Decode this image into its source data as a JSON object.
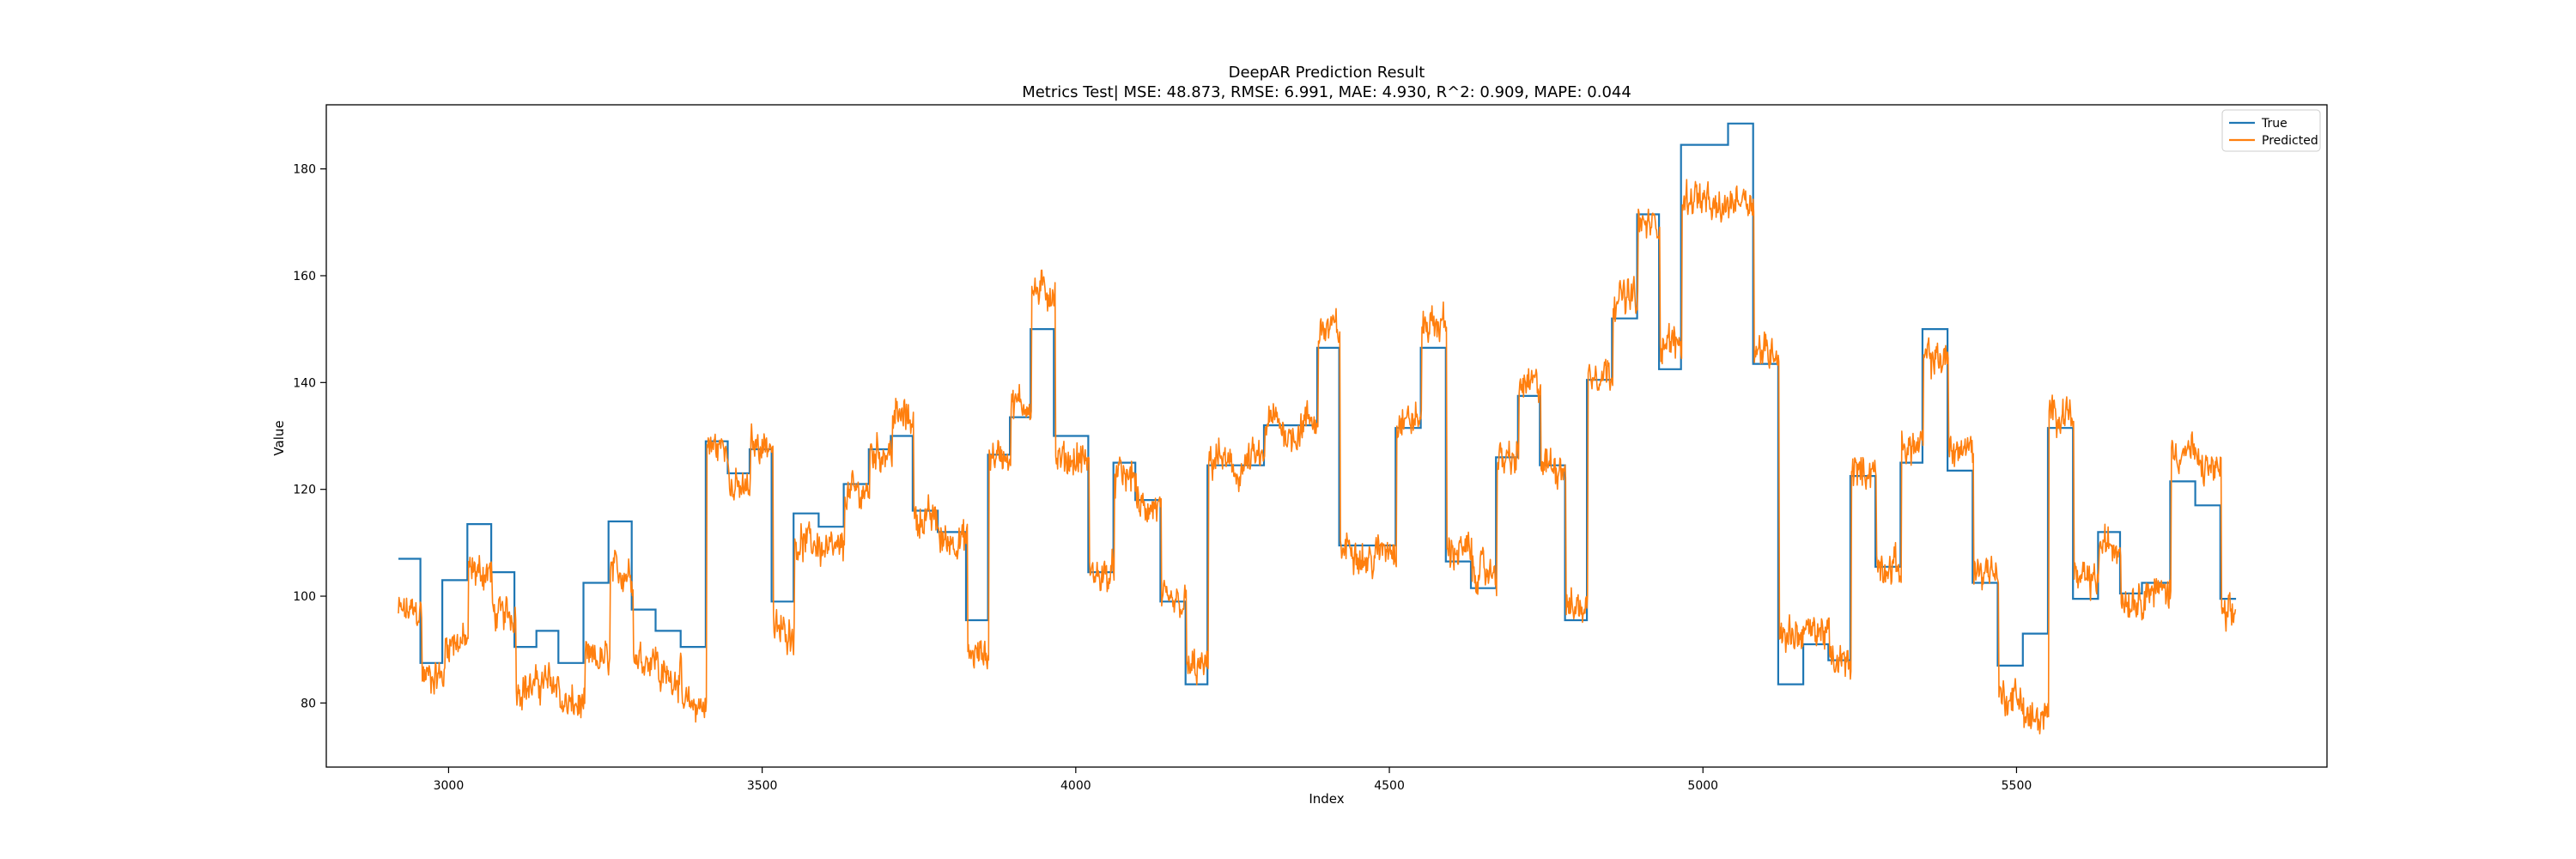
{
  "chart_data": {
    "type": "line",
    "title": "DeepAR Prediction Result",
    "subtitle": "Metrics Test| MSE: 48.873, RMSE: 6.991, MAE: 4.930, R^2: 0.909, MAPE: 0.044",
    "xlabel": "Index",
    "ylabel": "Value",
    "xlim": [
      2805,
      5995
    ],
    "ylim": [
      68,
      192
    ],
    "xticks": [
      3000,
      3500,
      4000,
      4500,
      5000,
      5500
    ],
    "yticks": [
      80,
      100,
      120,
      140,
      160,
      180
    ],
    "grid": false,
    "legend": "top-right",
    "series": [
      {
        "name": "True",
        "color": "#1f77b4",
        "segments": [
          [
            2920,
            107.0
          ],
          [
            2955,
            87.5
          ],
          [
            2990,
            103.0
          ],
          [
            3030,
            113.5
          ],
          [
            3068,
            104.5
          ],
          [
            3105,
            90.5
          ],
          [
            3140,
            93.5
          ],
          [
            3175,
            87.5
          ],
          [
            3215,
            102.5
          ],
          [
            3255,
            114.0
          ],
          [
            3292,
            97.5
          ],
          [
            3330,
            93.5
          ],
          [
            3370,
            90.5
          ],
          [
            3410,
            129.0
          ],
          [
            3445,
            123.0
          ],
          [
            3480,
            127.5
          ],
          [
            3515,
            99.0
          ],
          [
            3550,
            115.5
          ],
          [
            3590,
            113.0
          ],
          [
            3630,
            121.0
          ],
          [
            3670,
            127.5
          ],
          [
            3705,
            130.0
          ],
          [
            3740,
            116.0
          ],
          [
            3780,
            112.0
          ],
          [
            3825,
            95.5
          ],
          [
            3860,
            126.5
          ],
          [
            3895,
            133.5
          ],
          [
            3928,
            150.0
          ],
          [
            3965,
            130.0
          ],
          [
            4020,
            104.5
          ],
          [
            4060,
            125.0
          ],
          [
            4095,
            118.0
          ],
          [
            4135,
            99.0
          ],
          [
            4175,
            83.5
          ],
          [
            4210,
            124.5
          ],
          [
            4300,
            132.0
          ],
          [
            4385,
            146.5
          ],
          [
            4420,
            109.5
          ],
          [
            4510,
            131.5
          ],
          [
            4550,
            146.5
          ],
          [
            4590,
            106.5
          ],
          [
            4630,
            101.5
          ],
          [
            4670,
            126.0
          ],
          [
            4705,
            137.5
          ],
          [
            4740,
            124.5
          ],
          [
            4780,
            95.5
          ],
          [
            4815,
            140.5
          ],
          [
            4855,
            152.0
          ],
          [
            4895,
            171.5
          ],
          [
            4930,
            142.5
          ],
          [
            4965,
            184.5
          ],
          [
            5040,
            188.5
          ],
          [
            5080,
            143.5
          ],
          [
            5120,
            83.5
          ],
          [
            5160,
            91.0
          ],
          [
            5200,
            88.0
          ],
          [
            5235,
            122.5
          ],
          [
            5275,
            105.5
          ],
          [
            5315,
            125.0
          ],
          [
            5350,
            150.0
          ],
          [
            5390,
            123.5
          ],
          [
            5430,
            102.5
          ],
          [
            5470,
            87.0
          ],
          [
            5510,
            93.0
          ],
          [
            5550,
            131.5
          ],
          [
            5590,
            99.5
          ],
          [
            5630,
            112.0
          ],
          [
            5665,
            100.5
          ],
          [
            5700,
            102.5
          ],
          [
            5745,
            121.5
          ],
          [
            5785,
            117.0
          ],
          [
            5825,
            99.5
          ],
          [
            5850,
            99.5
          ]
        ]
      },
      {
        "name": "Predicted",
        "color": "#ff7f0e",
        "noise": 2.2,
        "x_end": 5850,
        "segments": [
          [
            2920,
            97.0
          ],
          [
            2958,
            85.0
          ],
          [
            2995,
            91.5
          ],
          [
            3032,
            104.5
          ],
          [
            3070,
            96.5
          ],
          [
            3108,
            83.0
          ],
          [
            3142,
            84.0
          ],
          [
            3178,
            79.5
          ],
          [
            3218,
            88.0
          ],
          [
            3258,
            104.5
          ],
          [
            3295,
            88.5
          ],
          [
            3335,
            85.0
          ],
          [
            3372,
            79.5
          ],
          [
            3412,
            128.0
          ],
          [
            3448,
            120.0
          ],
          [
            3482,
            128.5
          ],
          [
            3518,
            93.5
          ],
          [
            3552,
            110.0
          ],
          [
            3592,
            108.5
          ],
          [
            3632,
            119.5
          ],
          [
            3672,
            127.0
          ],
          [
            3708,
            133.5
          ],
          [
            3742,
            114.5
          ],
          [
            3782,
            110.5
          ],
          [
            3828,
            89.0
          ],
          [
            3862,
            126.5
          ],
          [
            3897,
            136.0
          ],
          [
            3930,
            157.0
          ],
          [
            3968,
            125.5
          ],
          [
            4022,
            104.0
          ],
          [
            4062,
            122.5
          ],
          [
            4097,
            116.5
          ],
          [
            4137,
            98.5
          ],
          [
            4177,
            86.5
          ],
          [
            4212,
            124.5
          ],
          [
            4302,
            131.5
          ],
          [
            4387,
            150.0
          ],
          [
            4422,
            108.0
          ],
          [
            4512,
            133.0
          ],
          [
            4552,
            151.0
          ],
          [
            4592,
            108.5
          ],
          [
            4632,
            104.5
          ],
          [
            4672,
            125.5
          ],
          [
            4707,
            139.5
          ],
          [
            4742,
            124.5
          ],
          [
            4782,
            98.0
          ],
          [
            4817,
            142.0
          ],
          [
            4857,
            156.0
          ],
          [
            4897,
            169.5
          ],
          [
            4932,
            147.5
          ],
          [
            4967,
            173.5
          ],
          [
            5082,
            146.0
          ],
          [
            5122,
            93.0
          ],
          [
            5162,
            93.5
          ],
          [
            5202,
            87.5
          ],
          [
            5237,
            123.5
          ],
          [
            5277,
            105.5
          ],
          [
            5317,
            128.0
          ],
          [
            5352,
            144.5
          ],
          [
            5392,
            127.5
          ],
          [
            5432,
            105.0
          ],
          [
            5472,
            81.0
          ],
          [
            5512,
            77.0
          ],
          [
            5552,
            134.5
          ],
          [
            5592,
            103.0
          ],
          [
            5632,
            109.5
          ],
          [
            5667,
            99.5
          ],
          [
            5702,
            101.0
          ],
          [
            5747,
            127.0
          ],
          [
            5787,
            124.0
          ],
          [
            5827,
            96.0
          ],
          [
            5850,
            96.0
          ]
        ]
      }
    ]
  }
}
